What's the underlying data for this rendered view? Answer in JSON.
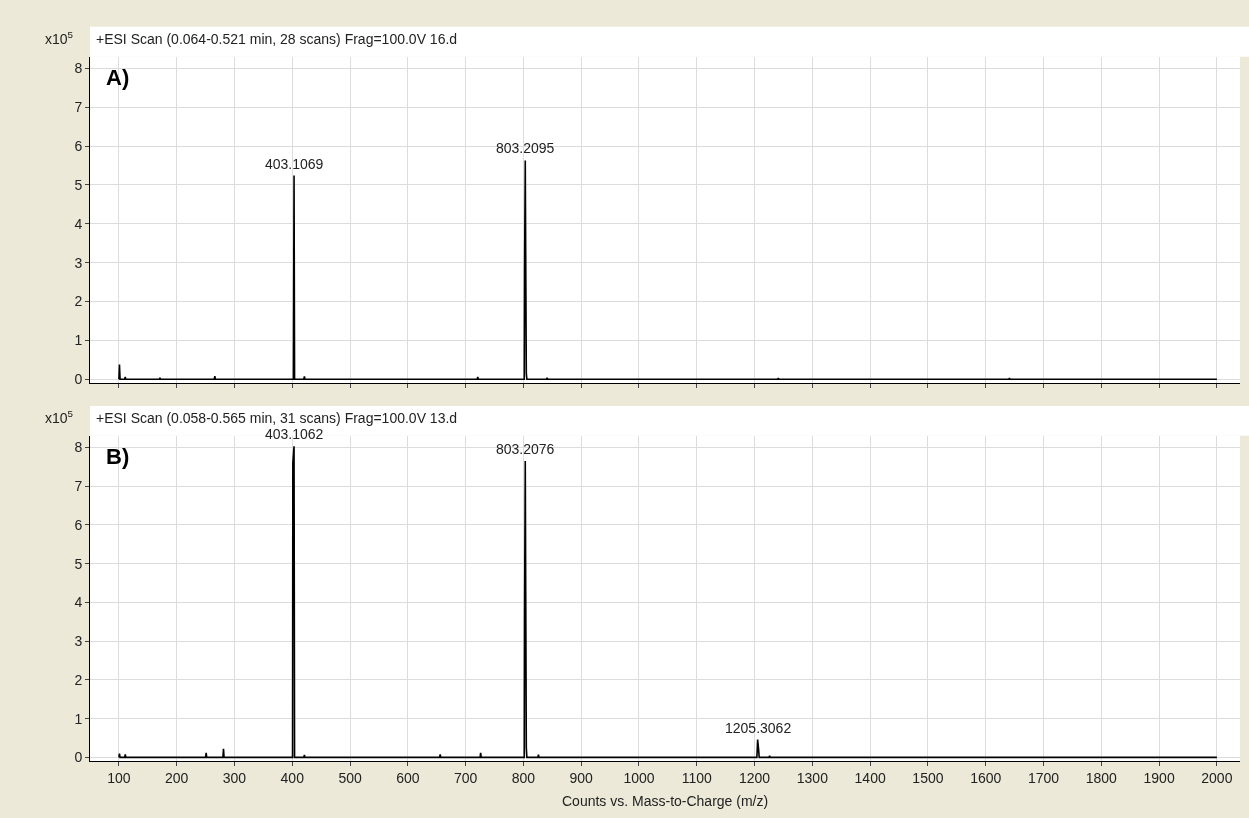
{
  "chart_data": [
    {
      "type": "line",
      "title": "+ESI Scan (0.064-0.521 min, 28 scans) Frag=100.0V 16.d",
      "ylabel": "x10$^{5}$",
      "annotations": [
        "A)",
        {
          "text": "403.1069",
          "x": 403.1,
          "y": 5.24
        },
        {
          "text": "803.2095",
          "x": 803.2,
          "y": 5.63
        }
      ],
      "series": [
        {
          "color": "#000000",
          "x": [
            100,
            101,
            102,
            110,
            111,
            112,
            170,
            171,
            172,
            265,
            266,
            267,
            402,
            403.1,
            404,
            420,
            421,
            422,
            720,
            721,
            722,
            801.5,
            802,
            803.2,
            804,
            805,
            806,
            840,
            841,
            842,
            1240,
            1241,
            1242,
            1640,
            1641,
            1642,
            2000
          ],
          "values": [
            0,
            0.38,
            0,
            0,
            0.06,
            0,
            0,
            0.04,
            0,
            0,
            0.08,
            0,
            0,
            5.24,
            0,
            0,
            0.07,
            0,
            0,
            0.06,
            0,
            0,
            2.75,
            5.63,
            3.1,
            0.15,
            0,
            0,
            0.04,
            0,
            0,
            0.03,
            0,
            0,
            0.03,
            0,
            0
          ]
        }
      ],
      "xlim": [
        50,
        2040
      ],
      "ylim": [
        -0.1,
        8.3
      ],
      "xticks": [
        100,
        200,
        300,
        400,
        500,
        600,
        700,
        800,
        900,
        1000,
        1100,
        1200,
        1300,
        1400,
        1500,
        1600,
        1700,
        1800,
        1900,
        2000
      ],
      "yticks": [
        0,
        1,
        2,
        3,
        4,
        5,
        6,
        7,
        8
      ],
      "tick_labels": "y",
      "grid": true,
      "line_style": "solid",
      "marker": "none"
    },
    {
      "type": "line",
      "title": "+ESI Scan (0.058-0.565 min, 31 scans) Frag=100.0V 13.d",
      "ylabel": "x10$^{5}$",
      "xlabel": "Counts vs. Mass-to-Charge (m/z)",
      "annotations": [
        "B)",
        {
          "text": "403.1062",
          "x": 403.1,
          "y": 8.03
        },
        {
          "text": "803.2076",
          "x": 803.2,
          "y": 7.65
        },
        {
          "text": "1205.3062",
          "x": 1205.3,
          "y": 0.46
        }
      ],
      "series": [
        {
          "color": "#000000",
          "x": [
            100,
            101,
            102,
            110,
            111,
            112,
            250,
            251,
            252,
            280,
            281,
            282,
            400.5,
            401,
            403.1,
            404,
            420,
            421,
            422,
            655,
            656,
            657,
            725,
            726,
            727,
            801.5,
            802,
            803.2,
            804,
            805,
            806,
            825,
            826,
            827,
            1204,
            1205.3,
            1207,
            1208,
            1225,
            1226,
            1227,
            2000
          ],
          "values": [
            0,
            0.1,
            0,
            0,
            0.08,
            0,
            0,
            0.12,
            0,
            0,
            0.22,
            0,
            0,
            7.6,
            8.03,
            0,
            0,
            0.06,
            0,
            0,
            0.08,
            0,
            0,
            0.12,
            0,
            0,
            3.7,
            7.65,
            4.3,
            0.25,
            0,
            0,
            0.07,
            0,
            0,
            0.46,
            0.2,
            0,
            0,
            0.04,
            0,
            0
          ]
        }
      ],
      "xlim": [
        50,
        2040
      ],
      "ylim": [
        -0.1,
        8.3
      ],
      "xticks": [
        100,
        200,
        300,
        400,
        500,
        600,
        700,
        800,
        900,
        1000,
        1100,
        1200,
        1300,
        1400,
        1500,
        1600,
        1700,
        1800,
        1900,
        2000
      ],
      "yticks": [
        0,
        1,
        2,
        3,
        4,
        5,
        6,
        7,
        8
      ],
      "grid": true,
      "line_style": "solid",
      "marker": "none"
    }
  ]
}
